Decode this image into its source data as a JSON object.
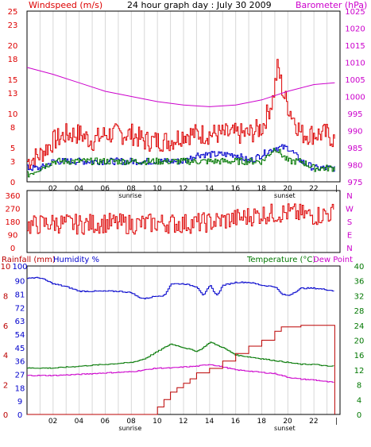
{
  "header": {
    "left": "Windspeed (m/s)",
    "center": "24 hour graph day : July 30 2009",
    "right": "Barometer (hPa)"
  },
  "chart_data": [
    {
      "type": "line",
      "name": "wind-barometer-panel",
      "x_ticks": [
        "02",
        "04",
        "06",
        "08",
        "10",
        "12",
        "14",
        "16",
        "18",
        "20",
        "22",
        "|"
      ],
      "x_markers": {
        "sunrise": 8,
        "sunset": 19.8
      },
      "y_left": {
        "label": "Windspeed (m/s)",
        "ticks": [
          0,
          3,
          5,
          8,
          10,
          13,
          15,
          18,
          20,
          23,
          25
        ],
        "range": [
          0,
          25
        ]
      },
      "y_right": {
        "label": "Barometer (hPa)",
        "ticks": [
          975,
          980,
          985,
          990,
          995,
          1000,
          1005,
          1010,
          1015,
          1020,
          1025
        ],
        "range": [
          975,
          1025
        ]
      },
      "series": [
        {
          "color": "#dd0000",
          "axis": "left",
          "x": [
            0,
            1,
            2,
            3,
            4,
            5,
            6,
            7,
            8,
            9,
            10,
            11,
            12,
            13,
            14,
            15,
            16,
            17,
            18,
            18.8,
            19.2,
            19.6,
            20,
            21,
            22,
            23,
            23.6
          ],
          "y": [
            3,
            4,
            6,
            7,
            7,
            6,
            7,
            7,
            7,
            6,
            6,
            6,
            7,
            7,
            7,
            7,
            7,
            7,
            8,
            12,
            17,
            13,
            11,
            7,
            7,
            7,
            6
          ]
        },
        {
          "color": "#0000cc",
          "axis": "left",
          "x": [
            0,
            1,
            2,
            3,
            4,
            5,
            6,
            7,
            8,
            9,
            10,
            11,
            12,
            13,
            14,
            15,
            16,
            17,
            18,
            19,
            20,
            21,
            22,
            23,
            23.6
          ],
          "y": [
            2,
            2,
            3,
            3,
            3,
            3,
            3,
            3,
            3,
            3,
            3,
            3,
            3,
            4,
            4,
            4,
            4,
            3,
            4,
            5,
            5,
            3,
            2,
            2,
            2
          ]
        },
        {
          "color": "#007700",
          "axis": "left",
          "x": [
            0,
            1,
            2,
            3,
            4,
            5,
            6,
            7,
            8,
            9,
            10,
            11,
            12,
            13,
            14,
            15,
            16,
            17,
            18,
            19,
            20,
            21,
            22,
            23,
            23.6
          ],
          "y": [
            1,
            2,
            3,
            3,
            3,
            3,
            3,
            3,
            3,
            3,
            3,
            3,
            3,
            3,
            3,
            3,
            3,
            3,
            3,
            5,
            3,
            3,
            2,
            2,
            2
          ]
        },
        {
          "color": "#cc00cc",
          "axis": "right",
          "x": [
            0,
            2,
            4,
            6,
            8,
            10,
            12,
            14,
            16,
            18,
            20,
            22,
            23.6
          ],
          "y": [
            1008.5,
            1006.5,
            1004,
            1001.5,
            1000,
            998.5,
            997.5,
            997,
            997.5,
            999,
            1001.5,
            1003.5,
            1004
          ]
        }
      ]
    },
    {
      "type": "line",
      "name": "wind-direction-panel",
      "x_ticks": [
        "02",
        "04",
        "06",
        "08",
        "10",
        "12",
        "14",
        "16",
        "18",
        "20",
        "22",
        "|"
      ],
      "y_left": {
        "ticks": [
          0,
          90,
          180,
          270,
          360
        ],
        "range": [
          0,
          360
        ]
      },
      "y_right": {
        "ticks": [
          "N",
          "W",
          "S",
          "E",
          "N"
        ]
      },
      "series": [
        {
          "color": "#dd0000",
          "axis": "left",
          "x": [
            0,
            2,
            4,
            6,
            8,
            10,
            12,
            14,
            16,
            18,
            20,
            22,
            23.6
          ],
          "y": [
            150,
            170,
            160,
            170,
            160,
            170,
            165,
            175,
            200,
            230,
            240,
            220,
            240
          ]
        }
      ]
    },
    {
      "type": "line",
      "name": "temp-humidity-rain-panel",
      "headers": {
        "rainfall": "Rainfall (mm)",
        "humidity": "Humidity %",
        "temperature": "Temperature (°C)",
        "dewpoint": "Dew Point"
      },
      "x_ticks": [
        "02",
        "04",
        "06",
        "08",
        "10",
        "12",
        "14",
        "16",
        "18",
        "20",
        "22",
        "|"
      ],
      "x_markers": {
        "sunrise": 8,
        "sunset": 19.8
      },
      "y_rain": {
        "ticks": [
          0,
          2,
          4,
          6,
          8,
          10
        ],
        "range": [
          0,
          10
        ]
      },
      "y_humidity": {
        "ticks": [
          0,
          9,
          18,
          27,
          36,
          45,
          54,
          63,
          72,
          81,
          90,
          100
        ],
        "range": [
          0,
          100
        ]
      },
      "y_temperature": {
        "ticks": [
          0,
          4,
          8,
          12,
          16,
          20,
          24,
          28,
          32,
          36,
          40
        ],
        "range": [
          0,
          40
        ]
      },
      "series": [
        {
          "color": "#0000cc",
          "axis": "humidity",
          "x": [
            0,
            1,
            2,
            3,
            4,
            5,
            6,
            7,
            8,
            8.5,
            9,
            10,
            10.5,
            11,
            12,
            13,
            13.5,
            14,
            14.5,
            15,
            16,
            17,
            18,
            19,
            19.5,
            20,
            21,
            22,
            23,
            23.6
          ],
          "y": [
            92,
            92,
            88,
            86,
            83,
            83,
            83,
            83,
            82,
            79,
            78,
            80,
            80,
            88,
            88,
            86,
            80,
            87,
            80,
            87,
            89,
            89,
            87,
            86,
            81,
            80,
            85,
            85,
            84,
            83
          ]
        },
        {
          "color": "#007700",
          "axis": "temperature",
          "x": [
            0,
            2,
            4,
            6,
            8,
            9,
            10,
            11,
            12,
            13,
            13.5,
            14,
            15,
            16,
            17,
            18,
            19,
            20,
            21,
            22,
            23,
            23.6
          ],
          "y": [
            12.5,
            12.5,
            13,
            13.5,
            14,
            15,
            17,
            19,
            18,
            17,
            18,
            19.5,
            18,
            16,
            15.5,
            15,
            14.5,
            14,
            13.5,
            13.5,
            13,
            13
          ]
        },
        {
          "color": "#cc00cc",
          "axis": "temperature",
          "x": [
            0,
            2,
            4,
            6,
            8,
            9,
            10,
            11,
            12,
            13,
            14,
            15,
            16,
            17,
            18,
            19,
            20,
            21,
            22,
            23,
            23.6
          ],
          "y": [
            10.5,
            10.5,
            10.8,
            11.2,
            11.5,
            12,
            12.5,
            12.5,
            12.8,
            13,
            13.5,
            12.8,
            12,
            11.7,
            11.3,
            11,
            10,
            9.5,
            9.3,
            8.8,
            8.6
          ]
        },
        {
          "color": "#bb0000",
          "axis": "rain",
          "x": [
            0,
            9.8,
            10,
            10.5,
            11,
            11.5,
            12,
            12.5,
            13,
            14,
            15,
            16,
            17,
            18,
            19,
            19.5,
            21,
            22,
            23,
            23.6,
            23.6
          ],
          "y": [
            0,
            0,
            0.5,
            1,
            1.5,
            1.8,
            2.1,
            2.4,
            2.8,
            3.1,
            3.6,
            4.1,
            4.6,
            5,
            5.6,
            5.9,
            6,
            6,
            6,
            6,
            0
          ]
        }
      ]
    }
  ],
  "colors": {
    "wind": "#dd0000",
    "gust_blue": "#0000cc",
    "gust_green": "#007700",
    "barometer": "#cc00cc",
    "humidity": "#0000cc",
    "temperature": "#007700",
    "dewpoint": "#cc00cc",
    "rainfall": "#bb0000",
    "grid": "#d8d8d8"
  },
  "footer_labels": {
    "sunrise": "sunrise",
    "sunset": "sunset"
  }
}
